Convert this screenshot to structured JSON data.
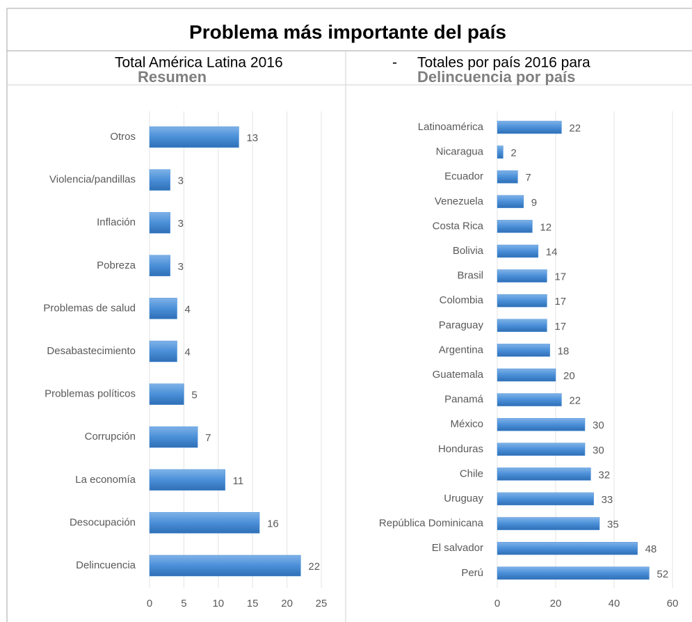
{
  "header": {
    "title": "Problema más importante del país",
    "subtitle_left": "Total América Latina 2016",
    "separator": "-",
    "subtitle_right": "Totales por país 2016 para"
  },
  "chart_data": [
    {
      "type": "bar",
      "orientation": "horizontal",
      "title": "Resumen",
      "categories": [
        "Otros",
        "Violencia/pandillas",
        "Inflación",
        "Pobreza",
        "Problemas de salud",
        "Desabastecimiento",
        "Problemas políticos",
        "Corrupción",
        "La economía",
        "Desocupación",
        "Delincuencia"
      ],
      "values": [
        13,
        3,
        3,
        3,
        4,
        4,
        5,
        7,
        11,
        16,
        22
      ],
      "color": "#4a8fd8",
      "xlim": [
        0,
        25
      ],
      "xticks": [
        0,
        5,
        10,
        15,
        20,
        25
      ],
      "grid": true
    },
    {
      "type": "bar",
      "orientation": "horizontal",
      "title": "Delincuencia por país",
      "categories": [
        "Latinoamérica",
        "Nicaragua",
        "Ecuador",
        "Venezuela",
        "Costa Rica",
        "Bolivia",
        "Brasil",
        "Colombia",
        "Paraguay",
        "Argentina",
        "Guatemala",
        "Panamá",
        "México",
        "Honduras",
        "Chile",
        "Uruguay",
        "República Dominicana",
        "El salvador",
        "Perú"
      ],
      "values": [
        22,
        2,
        7,
        9,
        12,
        14,
        17,
        17,
        17,
        18,
        20,
        22,
        30,
        30,
        32,
        33,
        35,
        48,
        52
      ],
      "color": "#4a8fd8",
      "xlim": [
        0,
        60
      ],
      "xticks": [
        0,
        20,
        40,
        60
      ],
      "grid": true
    }
  ]
}
